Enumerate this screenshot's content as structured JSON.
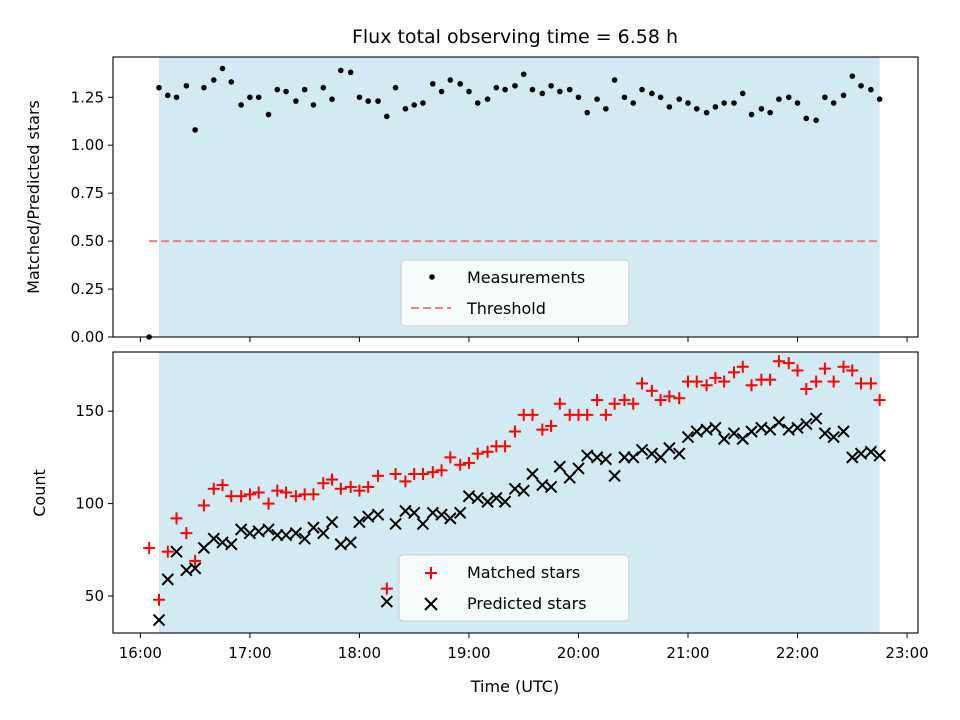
{
  "chart_data": [
    {
      "type": "scatter",
      "panel": "top",
      "title": "Flux total observing time = 6.58 h",
      "xlabel": "",
      "ylabel": "Matched/Predicted stars",
      "xlim": [
        15.75,
        23.1
      ],
      "ylim": [
        0,
        1.46
      ],
      "yticks": [
        0.0,
        0.25,
        0.5,
        0.75,
        1.0,
        1.25
      ],
      "ytick_labels": [
        "0.00",
        "0.25",
        "0.50",
        "0.75",
        "1.00",
        "1.25"
      ],
      "observing_window": [
        16.17,
        22.75
      ],
      "window_color": "#add8e6",
      "legend": {
        "placement": "lower-center",
        "entries": [
          "Measurements",
          "Threshold"
        ]
      },
      "series": [
        {
          "name": "Measurements",
          "marker": "dot",
          "color": "#000000",
          "x": [
            16.08,
            16.17,
            16.25,
            16.33,
            16.42,
            16.5,
            16.58,
            16.67,
            16.75,
            16.83,
            16.92,
            17.0,
            17.08,
            17.17,
            17.25,
            17.33,
            17.42,
            17.5,
            17.58,
            17.67,
            17.75,
            17.83,
            17.92,
            18.0,
            18.08,
            18.17,
            18.25,
            18.33,
            18.42,
            18.5,
            18.58,
            18.67,
            18.75,
            18.83,
            18.92,
            19.0,
            19.08,
            19.17,
            19.25,
            19.33,
            19.42,
            19.5,
            19.58,
            19.67,
            19.75,
            19.83,
            19.92,
            20.0,
            20.08,
            20.17,
            20.25,
            20.33,
            20.42,
            20.5,
            20.58,
            20.67,
            20.75,
            20.83,
            20.92,
            21.0,
            21.08,
            21.17,
            21.25,
            21.33,
            21.42,
            21.5,
            21.58,
            21.67,
            21.75,
            21.83,
            21.92,
            22.0,
            22.08,
            22.17,
            22.25,
            22.33,
            22.42,
            22.5,
            22.58,
            22.67,
            22.75
          ],
          "y": [
            0.0,
            1.3,
            1.26,
            1.25,
            1.31,
            1.08,
            1.3,
            1.34,
            1.4,
            1.33,
            1.21,
            1.25,
            1.25,
            1.16,
            1.29,
            1.28,
            1.23,
            1.29,
            1.21,
            1.3,
            1.24,
            1.39,
            1.38,
            1.25,
            1.23,
            1.23,
            1.15,
            1.3,
            1.19,
            1.21,
            1.22,
            1.32,
            1.28,
            1.34,
            1.32,
            1.28,
            1.22,
            1.24,
            1.3,
            1.29,
            1.31,
            1.37,
            1.29,
            1.27,
            1.31,
            1.28,
            1.29,
            1.25,
            1.17,
            1.24,
            1.19,
            1.34,
            1.25,
            1.22,
            1.29,
            1.27,
            1.25,
            1.2,
            1.24,
            1.22,
            1.19,
            1.17,
            1.2,
            1.22,
            1.22,
            1.27,
            1.16,
            1.19,
            1.17,
            1.24,
            1.25,
            1.22,
            1.14,
            1.13,
            1.25,
            1.22,
            1.26,
            1.36,
            1.31,
            1.29,
            1.24
          ]
        },
        {
          "name": "Threshold",
          "marker": "dashed-line",
          "color": "#f08080",
          "x": [
            16.08,
            22.75
          ],
          "y": [
            0.5,
            0.5
          ]
        }
      ]
    },
    {
      "type": "scatter",
      "panel": "bottom",
      "xlabel": "Time (UTC)",
      "ylabel": "Count",
      "xlim": [
        15.75,
        23.1
      ],
      "ylim": [
        30,
        182
      ],
      "xticks": [
        16,
        17,
        18,
        19,
        20,
        21,
        22,
        23
      ],
      "xtick_labels": [
        "16:00",
        "17:00",
        "18:00",
        "19:00",
        "20:00",
        "21:00",
        "22:00",
        "23:00"
      ],
      "yticks": [
        50,
        100,
        150
      ],
      "ytick_labels": [
        "50",
        "100",
        "150"
      ],
      "observing_window": [
        16.17,
        22.75
      ],
      "window_color": "#add8e6",
      "legend": {
        "placement": "lower-center",
        "entries": [
          "Matched stars",
          "Predicted stars"
        ]
      },
      "series": [
        {
          "name": "Matched stars",
          "marker": "plus",
          "color": "#ff0000",
          "x": [
            16.08,
            16.17,
            16.25,
            16.33,
            16.42,
            16.5,
            16.58,
            16.67,
            16.75,
            16.83,
            16.92,
            17.0,
            17.08,
            17.17,
            17.25,
            17.33,
            17.42,
            17.5,
            17.58,
            17.67,
            17.75,
            17.83,
            17.92,
            18.0,
            18.08,
            18.17,
            18.25,
            18.33,
            18.42,
            18.5,
            18.58,
            18.67,
            18.75,
            18.83,
            18.92,
            19.0,
            19.08,
            19.17,
            19.25,
            19.33,
            19.42,
            19.5,
            19.58,
            19.67,
            19.75,
            19.83,
            19.92,
            20.0,
            20.08,
            20.17,
            20.25,
            20.33,
            20.42,
            20.5,
            20.58,
            20.67,
            20.75,
            20.83,
            20.92,
            21.0,
            21.08,
            21.17,
            21.25,
            21.33,
            21.42,
            21.5,
            21.58,
            21.67,
            21.75,
            21.83,
            21.92,
            22.0,
            22.08,
            22.17,
            22.25,
            22.33,
            22.42,
            22.5,
            22.58,
            22.67,
            22.75
          ],
          "y": [
            76,
            48,
            74,
            92,
            84,
            69,
            99,
            108,
            110,
            104,
            104,
            105,
            106,
            100,
            107,
            106,
            104,
            105,
            105,
            111,
            113,
            108,
            109,
            107,
            109,
            115,
            54,
            116,
            112,
            116,
            116,
            117,
            118,
            125,
            121,
            122,
            127,
            128,
            131,
            131,
            139,
            148,
            148,
            140,
            142,
            154,
            148,
            148,
            148,
            156,
            148,
            154,
            156,
            154,
            165,
            161,
            156,
            158,
            157,
            166,
            166,
            164,
            168,
            166,
            171,
            174,
            164,
            167,
            167,
            177,
            176,
            172,
            162,
            166,
            173,
            166,
            174,
            172,
            165,
            165,
            156
          ]
        },
        {
          "name": "Predicted stars",
          "marker": "x",
          "color": "#000000",
          "x": [
            16.17,
            16.25,
            16.33,
            16.42,
            16.5,
            16.58,
            16.67,
            16.75,
            16.83,
            16.92,
            17.0,
            17.08,
            17.17,
            17.25,
            17.33,
            17.42,
            17.5,
            17.58,
            17.67,
            17.75,
            17.83,
            17.92,
            18.0,
            18.08,
            18.17,
            18.25,
            18.33,
            18.42,
            18.5,
            18.58,
            18.67,
            18.75,
            18.83,
            18.92,
            19.0,
            19.08,
            19.17,
            19.25,
            19.33,
            19.42,
            19.5,
            19.58,
            19.67,
            19.75,
            19.83,
            19.92,
            20.0,
            20.08,
            20.17,
            20.25,
            20.33,
            20.42,
            20.5,
            20.58,
            20.67,
            20.75,
            20.83,
            20.92,
            21.0,
            21.08,
            21.17,
            21.25,
            21.33,
            21.42,
            21.5,
            21.58,
            21.67,
            21.75,
            21.83,
            21.92,
            22.0,
            22.08,
            22.17,
            22.25,
            22.33,
            22.42,
            22.5,
            22.58,
            22.67,
            22.75
          ],
          "y": [
            37,
            59,
            74,
            64,
            65,
            76,
            81,
            79,
            78,
            86,
            84,
            85,
            86,
            83,
            83,
            84,
            81,
            87,
            84,
            90,
            78,
            79,
            90,
            93,
            94,
            47,
            89,
            96,
            95,
            89,
            95,
            94,
            92,
            95,
            104,
            103,
            101,
            103,
            101,
            108,
            107,
            116,
            110,
            109,
            120,
            114,
            119,
            126,
            125,
            124,
            115,
            125,
            125,
            129,
            127,
            125,
            130,
            127,
            136,
            139,
            140,
            141,
            135,
            138,
            135,
            139,
            141,
            140,
            144,
            140,
            141,
            143,
            146,
            138,
            136,
            139,
            125,
            127,
            128,
            126
          ]
        }
      ]
    }
  ]
}
